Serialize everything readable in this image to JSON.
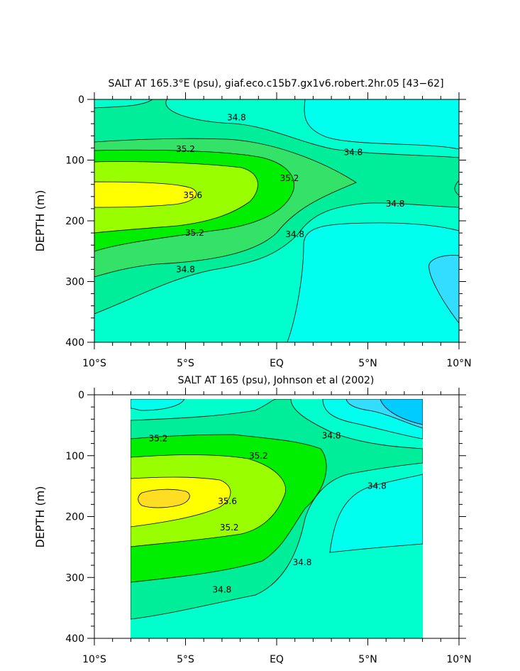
{
  "chart_data": [
    {
      "type": "heatmap",
      "subtype": "filled-contour",
      "title": "SALT AT 165.3°E (psu), giaf.eco.c15b7.gx1v6.robert.2hr.05 [43−62]",
      "ylabel": "DEPTH (m)",
      "xlabel": "",
      "x_tick_labels": [
        "10°S",
        "5°S",
        "EQ",
        "5°N",
        "10°N"
      ],
      "x_tick_values": [
        -10,
        -5,
        0,
        5,
        10
      ],
      "y_tick_labels": [
        "0",
        "100",
        "200",
        "300",
        "400"
      ],
      "y_tick_values": [
        0,
        100,
        200,
        300,
        400
      ],
      "xlim": [
        -10,
        10
      ],
      "ylim": [
        400,
        0
      ],
      "contour_interval": 0.2,
      "contour_labels": [
        {
          "text": "34.8",
          "lat": -2.2,
          "depth": 30
        },
        {
          "text": "35.2",
          "lat": -5.0,
          "depth": 82
        },
        {
          "text": "34.8",
          "lat": 4.2,
          "depth": 87
        },
        {
          "text": "35.2",
          "lat": 0.7,
          "depth": 130
        },
        {
          "text": "35.6",
          "lat": -4.6,
          "depth": 158
        },
        {
          "text": "34.8",
          "lat": 6.5,
          "depth": 172
        },
        {
          "text": "35.2",
          "lat": -4.5,
          "depth": 220
        },
        {
          "text": "34.8",
          "lat": 1.0,
          "depth": 222
        },
        {
          "text": "34.8",
          "lat": -5.0,
          "depth": 280
        }
      ],
      "color_levels": [
        {
          "salinity_range": "<34.4",
          "color": "#33ddff"
        },
        {
          "salinity_range": "34.4-34.6",
          "color": "#00ffee"
        },
        {
          "salinity_range": "34.6-34.8",
          "color": "#00ffcc"
        },
        {
          "salinity_range": "34.8-35.0",
          "color": "#00ee99"
        },
        {
          "salinity_range": "35.0-35.2",
          "color": "#33e266"
        },
        {
          "salinity_range": "35.2-35.4",
          "color": "#00ee00"
        },
        {
          "salinity_range": "35.4-35.6",
          "color": "#99ff00"
        },
        {
          "salinity_range": ">35.6",
          "color": "#ffff00"
        }
      ]
    },
    {
      "type": "heatmap",
      "subtype": "filled-contour",
      "title": "SALT AT 165 (psu), Johnson et al (2002)",
      "ylabel": "DEPTH (m)",
      "xlabel": "",
      "x_tick_labels": [
        "10°S",
        "5°S",
        "EQ",
        "5°N",
        "10°N"
      ],
      "x_tick_values": [
        -10,
        -5,
        0,
        5,
        10
      ],
      "y_tick_labels": [
        "0",
        "100",
        "200",
        "300",
        "400"
      ],
      "y_tick_values": [
        0,
        100,
        200,
        300,
        400
      ],
      "xlim": [
        -10,
        10
      ],
      "ylim": [
        400,
        0
      ],
      "data_extent_lat": [
        -8,
        8
      ],
      "contour_interval": 0.2,
      "contour_labels": [
        {
          "text": "35.2",
          "lat": -6.5,
          "depth": 72
        },
        {
          "text": "35.2",
          "lat": -1.0,
          "depth": 100
        },
        {
          "text": "34.8",
          "lat": 3.0,
          "depth": 67
        },
        {
          "text": "34.8",
          "lat": 5.5,
          "depth": 150
        },
        {
          "text": "35.6",
          "lat": -2.7,
          "depth": 175
        },
        {
          "text": "35.2",
          "lat": -2.6,
          "depth": 218
        },
        {
          "text": "34.8",
          "lat": 1.4,
          "depth": 275
        },
        {
          "text": "34.8",
          "lat": -3.0,
          "depth": 320
        }
      ],
      "color_levels": [
        {
          "salinity_range": "<34.4",
          "color": "#00ccff"
        },
        {
          "salinity_range": "34.4-34.6",
          "color": "#33ddff"
        },
        {
          "salinity_range": "34.6-34.8",
          "color": "#00ffee"
        },
        {
          "salinity_range": "34.8-35.0",
          "color": "#00ffcc"
        },
        {
          "salinity_range": "35.0-35.2",
          "color": "#00ee99"
        },
        {
          "salinity_range": "35.2-35.4",
          "color": "#00ee00"
        },
        {
          "salinity_range": "35.4-35.6",
          "color": "#99ff00"
        },
        {
          "salinity_range": "35.6-35.8",
          "color": "#ffff00"
        },
        {
          "salinity_range": ">35.8",
          "color": "#ffdd22"
        }
      ]
    }
  ]
}
